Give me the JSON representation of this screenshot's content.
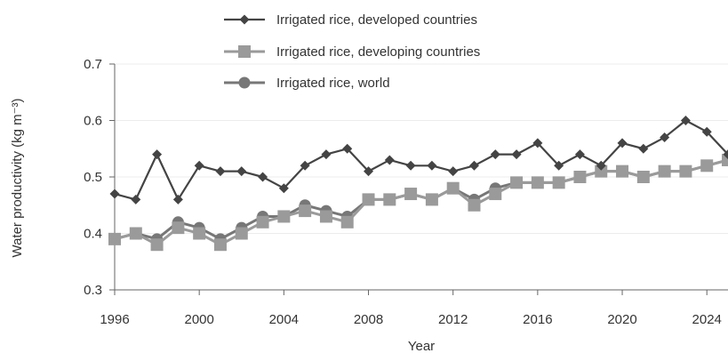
{
  "chart_data": {
    "type": "line",
    "title": "",
    "xlabel": "Year",
    "ylabel": "Water productivity (kg m⁻³)",
    "xlim": [
      1996,
      2025
    ],
    "ylim": [
      0.3,
      0.7
    ],
    "x_ticks": [
      "1996",
      "2000",
      "2004",
      "2008",
      "2012",
      "2016",
      "2020",
      "2024"
    ],
    "y_ticks": [
      "0.3",
      "0.4",
      "0.5",
      "0.6",
      "0.7"
    ],
    "grid": "horizontal",
    "legend_position": "top-center",
    "x": [
      1996,
      1997,
      1998,
      1999,
      2000,
      2001,
      2002,
      2003,
      2004,
      2005,
      2006,
      2007,
      2008,
      2009,
      2010,
      2011,
      2012,
      2013,
      2014,
      2015,
      2016,
      2017,
      2018,
      2019,
      2020,
      2021,
      2022,
      2023,
      2024,
      2025
    ],
    "series": [
      {
        "name": "Irrigated rice, developed countries",
        "marker": "diamond",
        "color": "#444444",
        "values": [
          0.47,
          0.46,
          0.54,
          0.46,
          0.52,
          0.51,
          0.51,
          0.5,
          0.48,
          0.52,
          0.54,
          0.55,
          0.51,
          0.53,
          0.52,
          0.52,
          0.51,
          0.52,
          0.54,
          0.54,
          0.56,
          0.52,
          0.54,
          0.52,
          0.56,
          0.55,
          0.57,
          0.6,
          0.58,
          0.54
        ]
      },
      {
        "name": "Irrigated rice, developing countries",
        "marker": "square",
        "color": "#9a9a9a",
        "values": [
          0.39,
          0.4,
          0.38,
          0.41,
          0.4,
          0.38,
          0.4,
          0.42,
          0.43,
          0.44,
          0.43,
          0.42,
          0.46,
          0.46,
          0.47,
          0.46,
          0.48,
          0.45,
          0.47,
          0.49,
          0.49,
          0.49,
          0.5,
          0.51,
          0.51,
          0.5,
          0.51,
          0.51,
          0.52,
          0.53
        ]
      },
      {
        "name": "Irrigated rice, world",
        "marker": "circle",
        "color": "#777777",
        "values": [
          0.39,
          0.4,
          0.39,
          0.42,
          0.41,
          0.39,
          0.41,
          0.43,
          0.43,
          0.45,
          0.44,
          0.43,
          0.46,
          0.46,
          0.47,
          0.46,
          0.48,
          0.46,
          0.48,
          0.49,
          0.49,
          0.49,
          0.5,
          0.51,
          0.51,
          0.5,
          0.51,
          0.51,
          0.52,
          0.53
        ]
      }
    ]
  }
}
